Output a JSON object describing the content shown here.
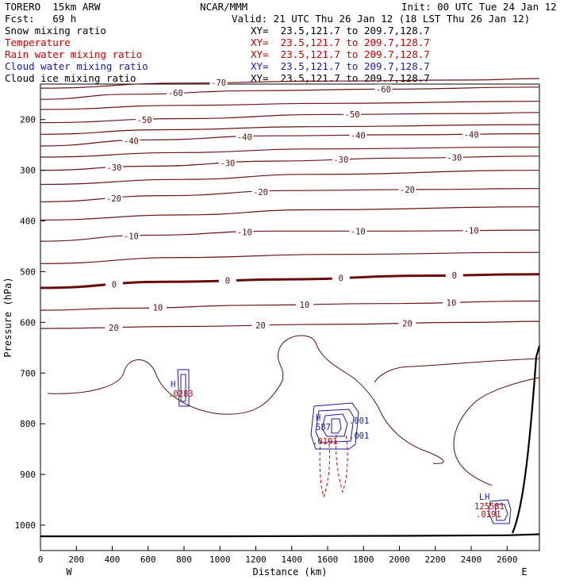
{
  "header": {
    "model": "TORERO  15km ARW",
    "center": "NCAR/MMM",
    "init": "Init: 00 UTC Tue 24 Jan 12",
    "fcst": "Fcst:   69 h",
    "valid": "Valid: 21 UTC Thu 26 Jan 12 (18 LST Thu 26 Jan 12)",
    "fields": [
      {
        "name": "Snow mixing ratio",
        "xy": "",
        "color": "#000000"
      },
      {
        "name": "Temperature",
        "xy": "XY=  23.5,121.7 to 209.7,128.7",
        "color": "#cc0000"
      },
      {
        "name": "Rain water mixing ratio",
        "xy": "XY=  23.5,121.7 to 209.7,128.7",
        "color": "#cc0000"
      },
      {
        "name": "Cloud water mixing ratio",
        "xy": "XY=  23.5,121.7 to 209.7,128.7",
        "color": "#1a1aa8"
      },
      {
        "name": "Cloud ice mixing ratio",
        "xy": "XY=  23.5,121.7 to 209.7,128.7",
        "color": "#000000"
      }
    ],
    "xy_snow": "XY=  23.5,121.7 to 209.7,128.7"
  },
  "chart_data": {
    "type": "contour-cross-section",
    "xlabel": "Distance (km)",
    "ylabel": "Pressure (hPa)",
    "x_ticks": [
      0,
      200,
      400,
      600,
      800,
      1000,
      1200,
      1400,
      1600,
      1800,
      2000,
      2200,
      2400,
      2600
    ],
    "y_ticks": [
      200,
      300,
      400,
      500,
      600,
      700,
      800,
      900,
      1000
    ],
    "xlim": [
      0,
      2780
    ],
    "ylim": [
      1050,
      130
    ],
    "x_end_labels": {
      "left": "W",
      "right": "E"
    },
    "temperature_contours": [
      {
        "value": -70,
        "labels": [
          "-70"
        ],
        "points": [
          [
            0,
            138
          ],
          [
            800,
            128
          ],
          [
            1600,
            124
          ],
          [
            2400,
            122
          ],
          [
            2780,
            119
          ]
        ]
      },
      {
        "value": -60,
        "labels": [
          "-60",
          "-60"
        ],
        "points": [
          [
            0,
            160
          ],
          [
            500,
            150
          ],
          [
            1200,
            143
          ],
          [
            1900,
            140
          ],
          [
            2780,
            136
          ]
        ]
      },
      {
        "value": -60,
        "labels": [],
        "points": [
          [
            0,
            180
          ],
          [
            800,
            172
          ],
          [
            1600,
            168
          ],
          [
            2780,
            164
          ]
        ]
      },
      {
        "value": -50,
        "labels": [
          "-50",
          "-50"
        ],
        "points": [
          [
            0,
            206
          ],
          [
            800,
            198
          ],
          [
            1600,
            190
          ],
          [
            2400,
            188
          ],
          [
            2780,
            186
          ]
        ]
      },
      {
        "value": -50,
        "labels": [],
        "points": [
          [
            0,
            229
          ],
          [
            700,
            220
          ],
          [
            1500,
            214
          ],
          [
            2780,
            210
          ]
        ]
      },
      {
        "value": -40,
        "labels": [
          "-40",
          "-40",
          "-40",
          "-40"
        ],
        "points": [
          [
            0,
            252
          ],
          [
            600,
            240
          ],
          [
            1300,
            232
          ],
          [
            2000,
            230
          ],
          [
            2780,
            228
          ]
        ]
      },
      {
        "value": -40,
        "labels": [],
        "points": [
          [
            0,
            274
          ],
          [
            800,
            265
          ],
          [
            1500,
            258
          ],
          [
            2780,
            254
          ]
        ]
      },
      {
        "value": -30,
        "labels": [
          "-30",
          "-30",
          "-30",
          "-30"
        ],
        "points": [
          [
            0,
            300
          ],
          [
            600,
            292
          ],
          [
            1300,
            282
          ],
          [
            2000,
            276
          ],
          [
            2780,
            272
          ]
        ]
      },
      {
        "value": -30,
        "labels": [],
        "points": [
          [
            0,
            328
          ],
          [
            800,
            318
          ],
          [
            1500,
            308
          ],
          [
            2780,
            300
          ]
        ]
      },
      {
        "value": -20,
        "labels": [
          "-20",
          "-20",
          "-20"
        ],
        "points": [
          [
            0,
            362
          ],
          [
            700,
            350
          ],
          [
            1400,
            340
          ],
          [
            2100,
            338
          ],
          [
            2780,
            336
          ]
        ]
      },
      {
        "value": -20,
        "labels": [],
        "points": [
          [
            0,
            398
          ],
          [
            800,
            388
          ],
          [
            1500,
            378
          ],
          [
            2780,
            372
          ]
        ]
      },
      {
        "value": -10,
        "labels": [
          "-10",
          "-10",
          "-10",
          "-10"
        ],
        "points": [
          [
            0,
            440
          ],
          [
            600,
            428
          ],
          [
            1300,
            420
          ],
          [
            2000,
            420
          ],
          [
            2780,
            418
          ]
        ]
      },
      {
        "value": -10,
        "labels": [],
        "points": [
          [
            0,
            484
          ],
          [
            800,
            472
          ],
          [
            1600,
            466
          ],
          [
            2780,
            462
          ]
        ]
      },
      {
        "value": 0,
        "labels": [
          "0",
          "0",
          "0",
          "0"
        ],
        "points": [
          [
            0,
            532
          ],
          [
            700,
            520
          ],
          [
            1400,
            515
          ],
          [
            2100,
            508
          ],
          [
            2780,
            505
          ]
        ]
      },
      {
        "value": 10,
        "labels": [
          "10",
          "10",
          "10"
        ],
        "points": [
          [
            0,
            576
          ],
          [
            500,
            572
          ],
          [
            1200,
            566
          ],
          [
            1900,
            563
          ],
          [
            2780,
            558
          ]
        ]
      },
      {
        "value": 20,
        "labels": [
          "20",
          "20",
          "20"
        ],
        "points": [
          [
            0,
            612
          ],
          [
            800,
            608
          ],
          [
            1600,
            604
          ],
          [
            2400,
            600
          ],
          [
            2780,
            598
          ]
        ]
      }
    ],
    "freezing_line": {
      "value": 0,
      "labels": [
        "0",
        "0",
        "0",
        "0"
      ]
    },
    "surface_line": {
      "points": [
        [
          0,
          1022
        ],
        [
          1000,
          1022
        ],
        [
          2000,
          1021
        ],
        [
          2600,
          1020
        ],
        [
          2780,
          1018
        ]
      ]
    }
  },
  "annotations": {
    "cloud_labels": [
      "587",
      ".0191",
      ".001",
      ".001",
      ".0283",
      "125581",
      ".001",
      ".0191"
    ],
    "high_low": [
      "H",
      "H",
      "L",
      "H"
    ]
  }
}
